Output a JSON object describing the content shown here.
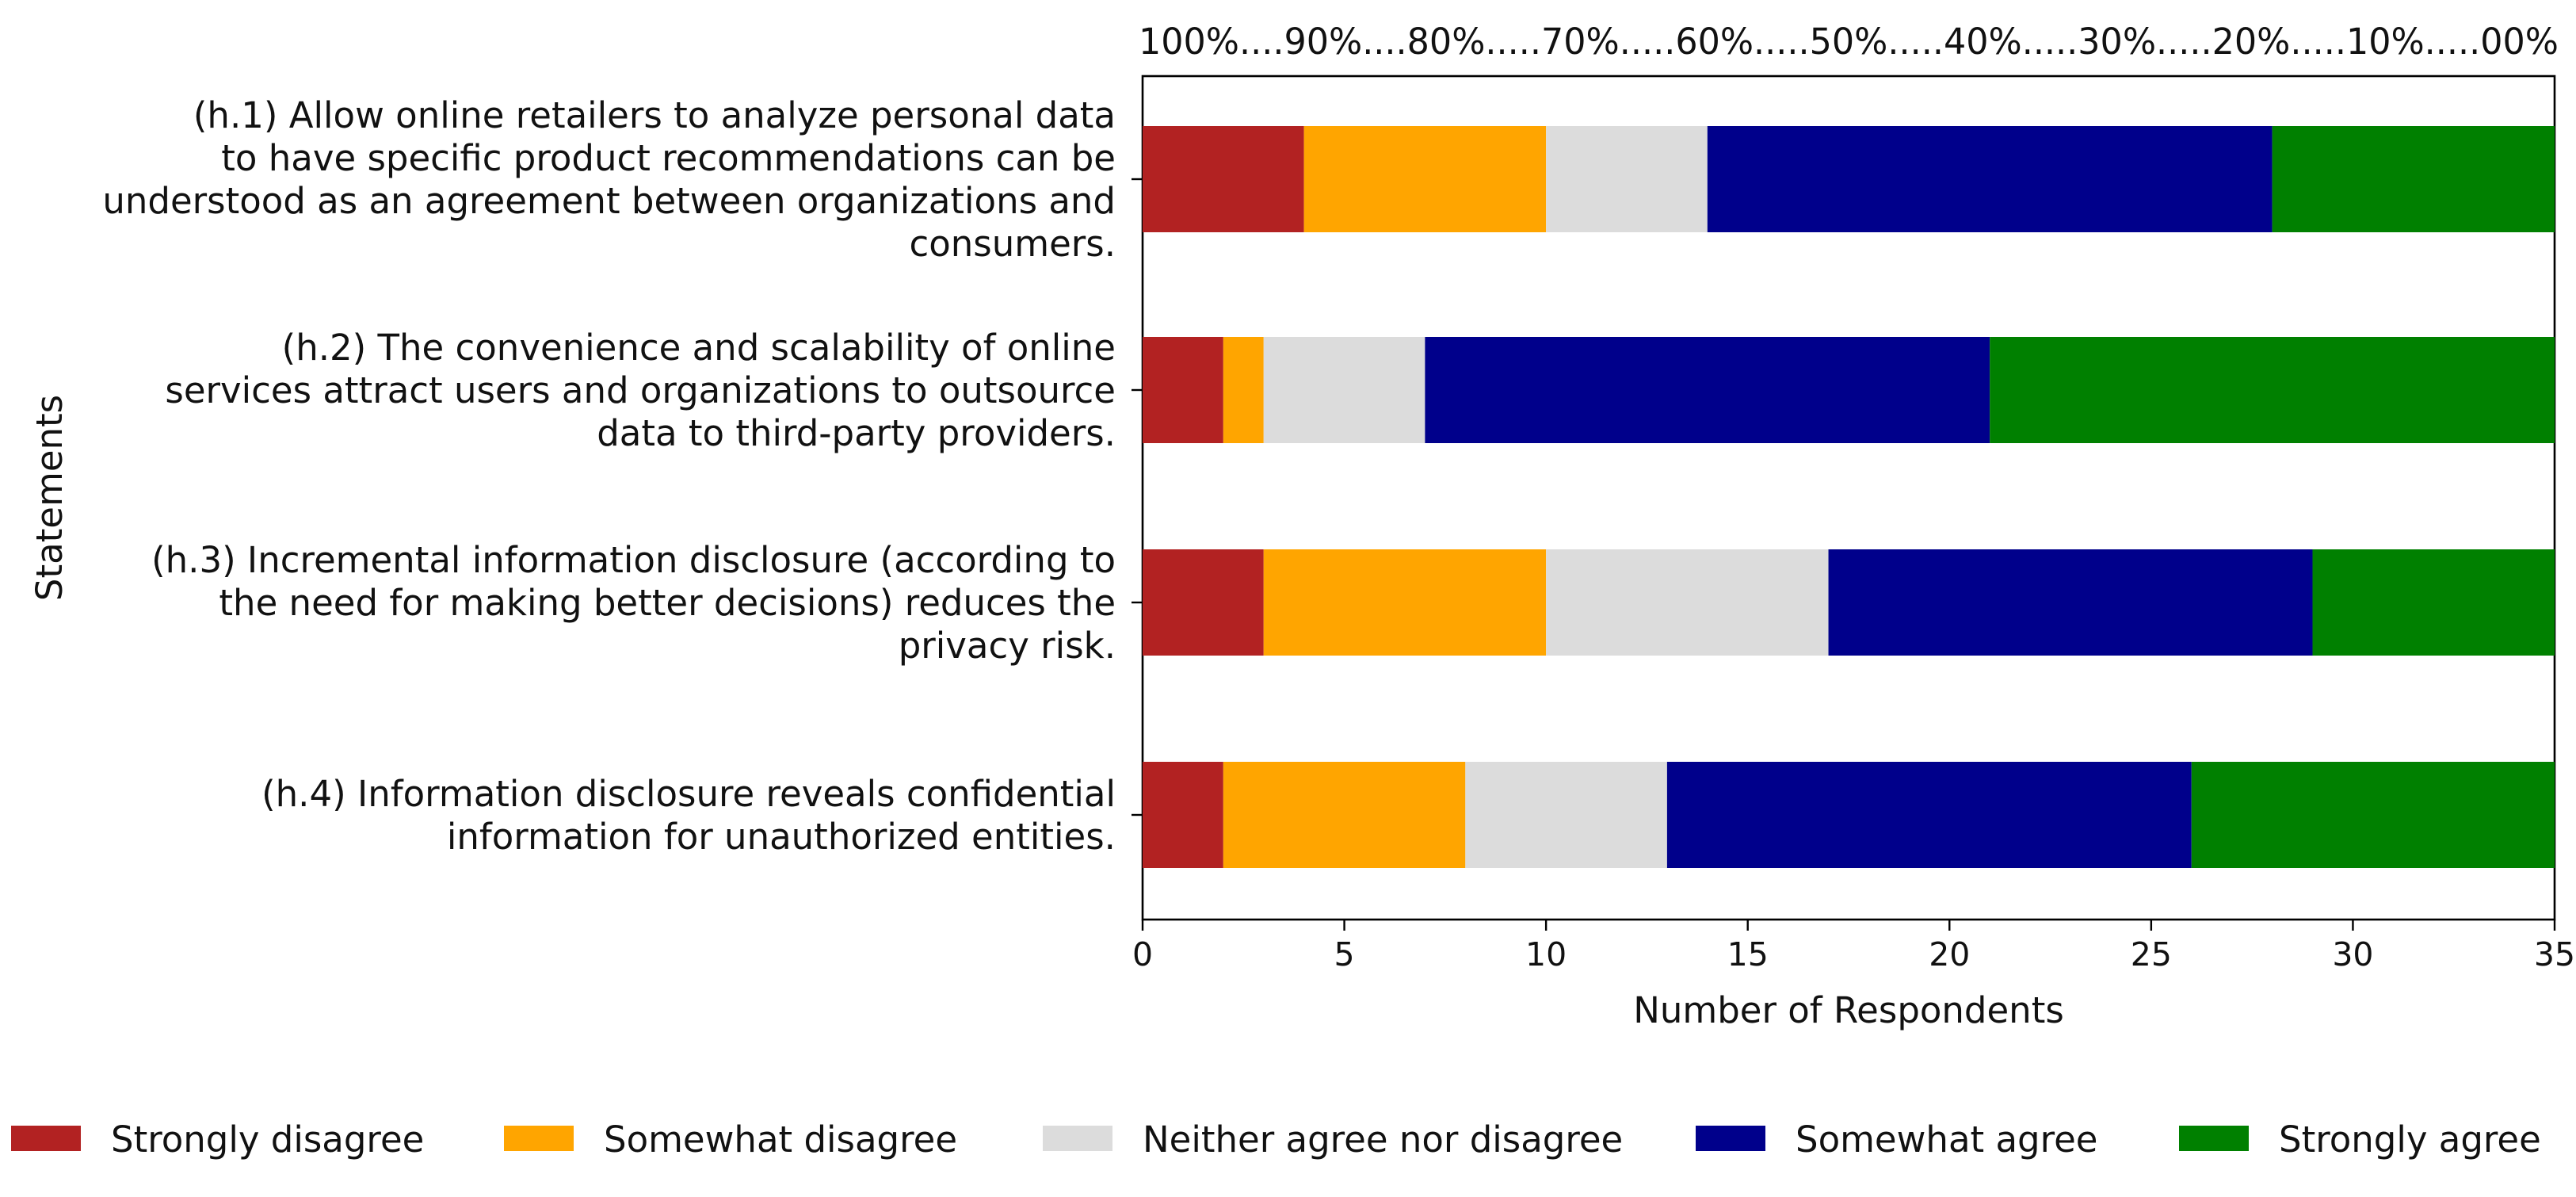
{
  "chart_data": {
    "type": "bar",
    "orientation": "horizontal",
    "stacked": true,
    "title": "",
    "xlabel": "Number of Respondents",
    "ylabel": "Statements",
    "xlim": [
      0,
      35
    ],
    "xticks": [
      0,
      5,
      10,
      15,
      20,
      25,
      30,
      35
    ],
    "top_scale_label": "100%....90%....80%.....70%.....60%.....50%.....40%.....30%.....20%.....10%.....00%",
    "categories": [
      [
        "(h.1) Allow online retailers to analyze personal data",
        "to have specific product recommendations can be",
        "understood as an agreement between organizations and",
        "consumers."
      ],
      [
        "(h.2) The convenience and scalability of online",
        "services attract users and organizations to outsource",
        "data to third-party providers."
      ],
      [
        "(h.3) Incremental information disclosure (according to",
        "the need for making better decisions) reduces the",
        "privacy risk."
      ],
      [
        "(h.4) Information disclosure reveals confidential",
        "information for unauthorized entities."
      ]
    ],
    "series": [
      {
        "name": "Strongly disagree",
        "color": "#b22222",
        "values": [
          4,
          2,
          3,
          2
        ]
      },
      {
        "name": "Somewhat disagree",
        "color": "#ffa500",
        "values": [
          6,
          1,
          7,
          6
        ]
      },
      {
        "name": "Neither agree nor disagree",
        "color": "#dcdcdc",
        "values": [
          4,
          4,
          7,
          5
        ]
      },
      {
        "name": "Somewhat agree",
        "color": "#00008b",
        "values": [
          14,
          14,
          12,
          13
        ]
      },
      {
        "name": "Strongly agree",
        "color": "#008000",
        "values": [
          7,
          14,
          6,
          9
        ]
      }
    ],
    "legend_position": "bottom",
    "grid": false
  }
}
